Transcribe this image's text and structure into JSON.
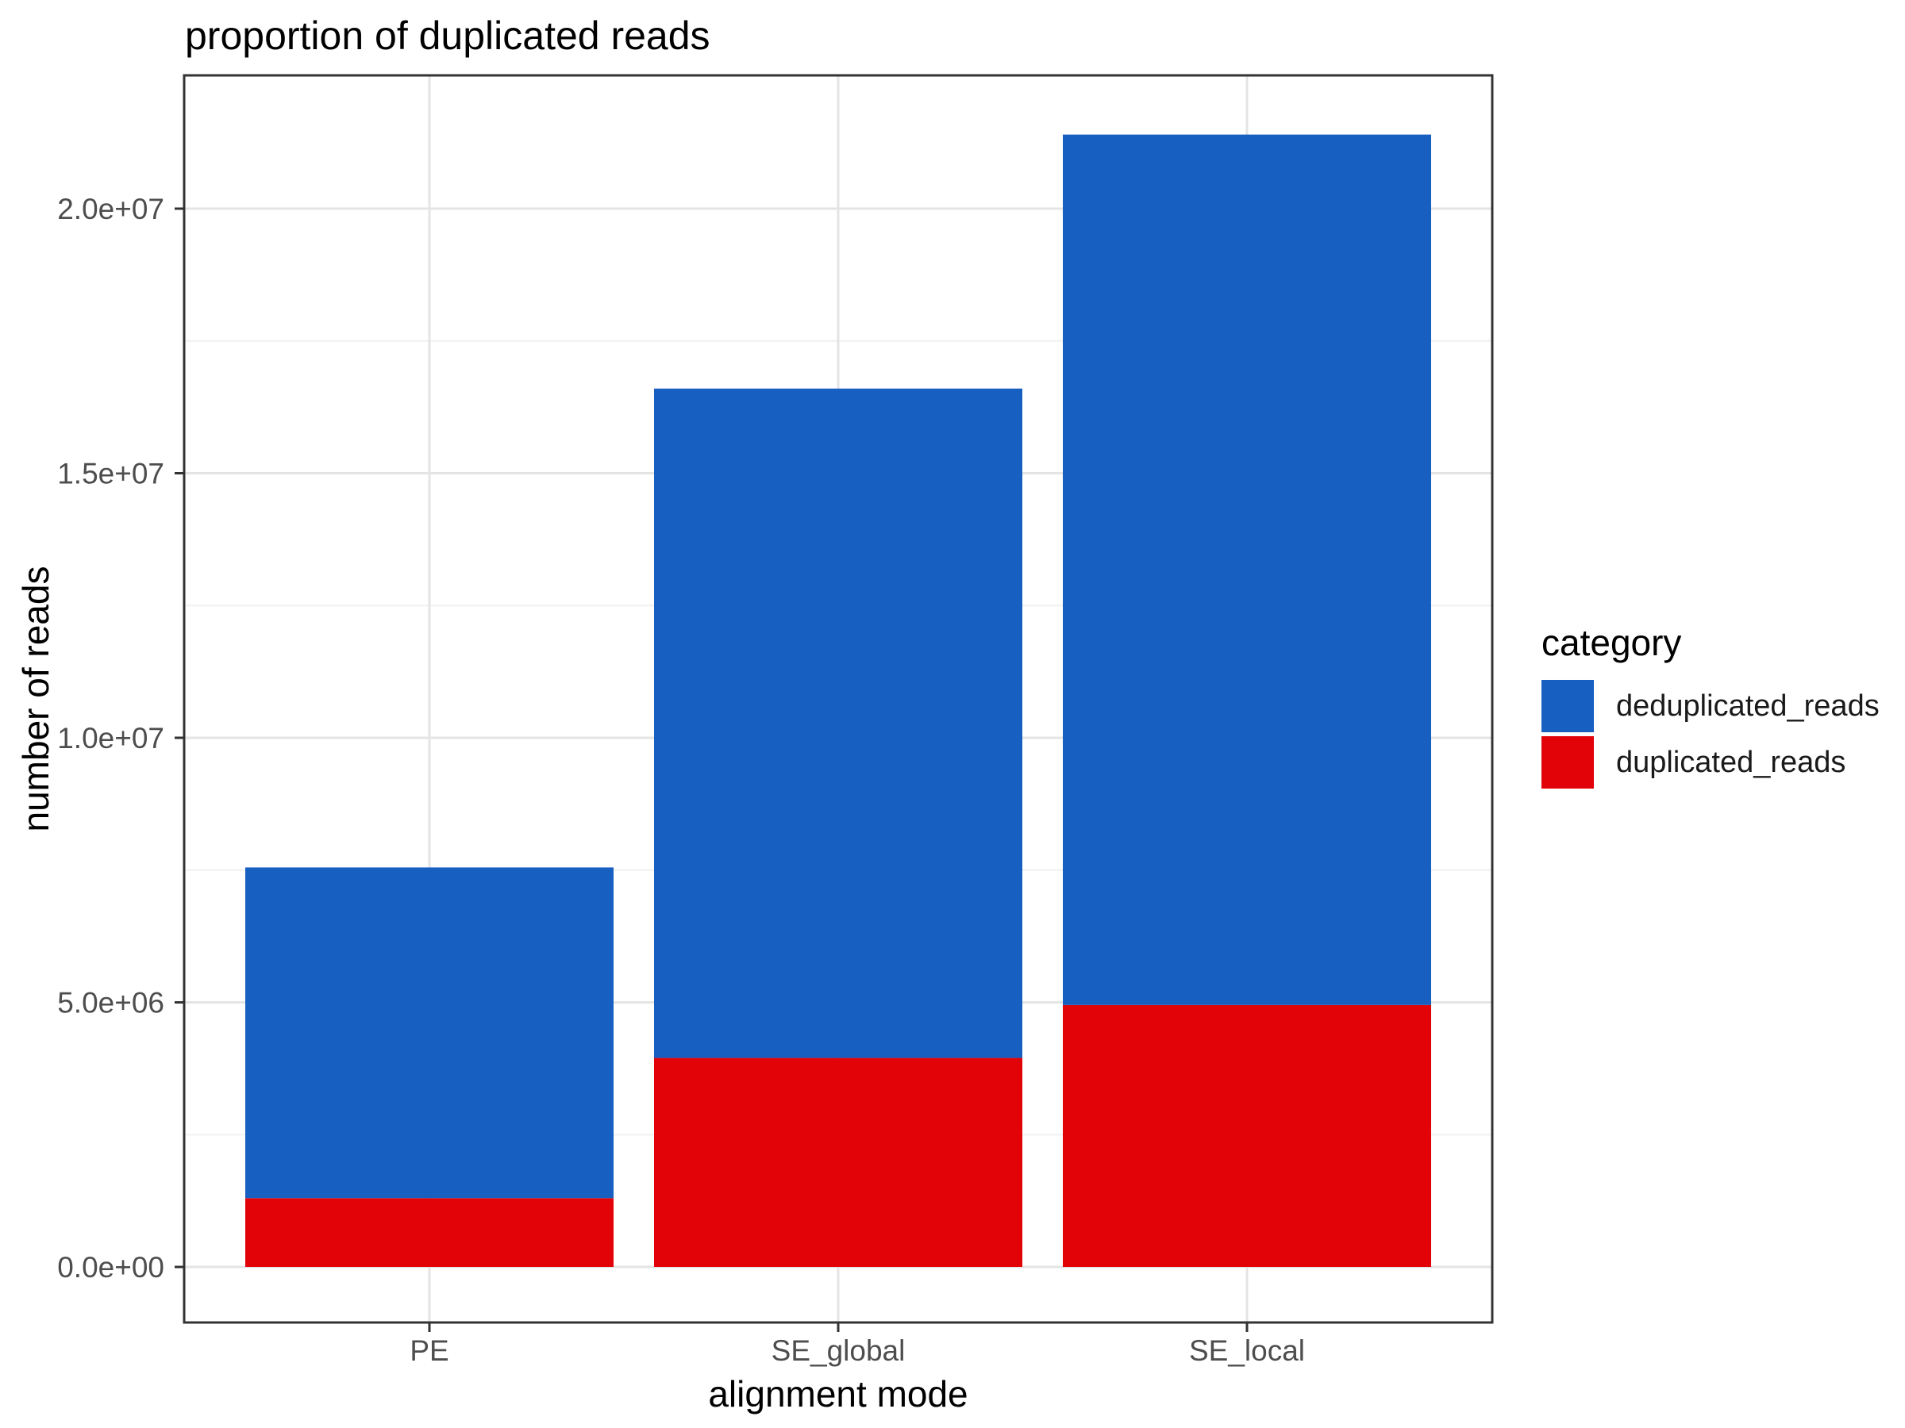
{
  "chart_data": {
    "type": "bar",
    "stacked": true,
    "title": "proportion of duplicated reads",
    "xlabel": "alignment mode",
    "ylabel": "number of reads",
    "legend_title": "category",
    "legend_position": "right",
    "grid": true,
    "categories": [
      "PE",
      "SE_global",
      "SE_local"
    ],
    "series": [
      {
        "name": "deduplicated_reads",
        "color": "#1760c2",
        "values": [
          6250000,
          12650000,
          16450000
        ]
      },
      {
        "name": "duplicated_reads",
        "color": "#e20309",
        "values": [
          1300000,
          3950000,
          4950000
        ]
      }
    ],
    "totals": [
      7550000,
      16600000,
      21400000
    ],
    "y_ticks": [
      {
        "value": 0,
        "label": "0.0e+00"
      },
      {
        "value": 5000000,
        "label": "5.0e+06"
      },
      {
        "value": 10000000,
        "label": "1.0e+07"
      },
      {
        "value": 15000000,
        "label": "1.5e+07"
      },
      {
        "value": 20000000,
        "label": "2.0e+07"
      }
    ],
    "ylim": [
      0,
      22500000
    ],
    "colors": {
      "panel_border": "#333333",
      "grid_major": "#e4e4e4",
      "grid_minor": "#f0f0f0",
      "tick_text": "#4d4d4d",
      "tick_mark": "#333333"
    }
  }
}
